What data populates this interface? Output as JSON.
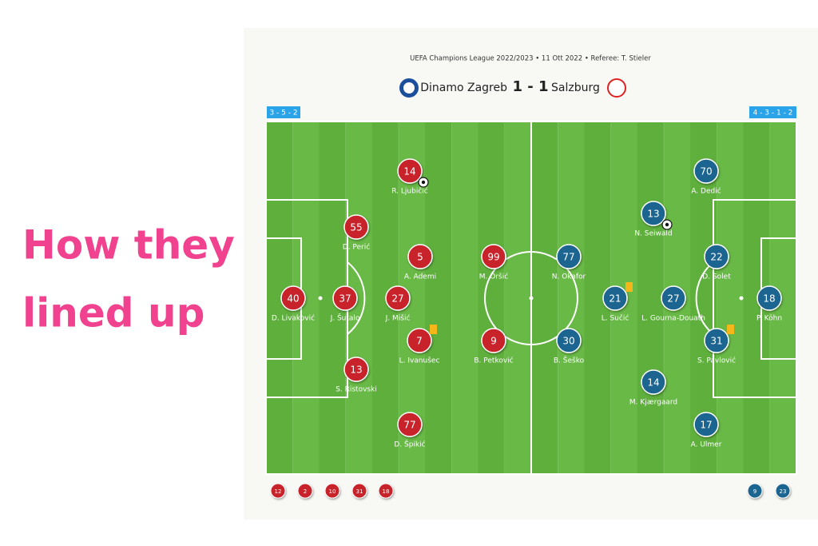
{
  "headline": [
    "How they",
    "lined up"
  ],
  "match": {
    "info": "UEFA Champions League 2022/2023 • 11 Ott 2022 • Referee: T. Stieler",
    "home_team": "Dinamo Zagreb",
    "away_team": "Salzburg",
    "score": "1 - 1"
  },
  "home": {
    "formation": "3 - 5 - 2",
    "color": "#c8232b",
    "players": [
      {
        "number": 14,
        "name": "R. Ljubičić",
        "scored": true
      },
      {
        "number": 55,
        "name": "D. Perić"
      },
      {
        "number": 5,
        "name": "A. Ademi"
      },
      {
        "number": 99,
        "name": "M. Oršić"
      },
      {
        "number": 40,
        "name": "D. Livaković"
      },
      {
        "number": 37,
        "name": "J. Šutalo"
      },
      {
        "number": 27,
        "name": "J. Mišić"
      },
      {
        "number": 7,
        "name": "L. Ivanušec",
        "booked": true
      },
      {
        "number": 9,
        "name": "B. Petković"
      },
      {
        "number": 13,
        "name": "S. Ristovski"
      },
      {
        "number": 77,
        "name": "D. Špikić"
      }
    ],
    "subs": [
      12,
      2,
      10,
      31,
      18
    ]
  },
  "away": {
    "formation": "4 - 3 - 1 - 2",
    "color": "#1f6590",
    "players": [
      {
        "number": 70,
        "name": "A. Dedić"
      },
      {
        "number": 13,
        "name": "N. Seiwald",
        "scored": true
      },
      {
        "number": 22,
        "name": "D. Solet"
      },
      {
        "number": 77,
        "name": "N. Okafor"
      },
      {
        "number": 21,
        "name": "L. Sučić",
        "booked": true
      },
      {
        "number": 27,
        "name": "L. Gourna-Douath"
      },
      {
        "number": 18,
        "name": "P. Köhn"
      },
      {
        "number": 30,
        "name": "B. Šeško"
      },
      {
        "number": 31,
        "name": "S. Pavlović",
        "booked": true
      },
      {
        "number": 14,
        "name": "M. Kjærgaard"
      },
      {
        "number": 17,
        "name": "A. Ulmer"
      }
    ],
    "subs": [
      9,
      23
    ]
  }
}
